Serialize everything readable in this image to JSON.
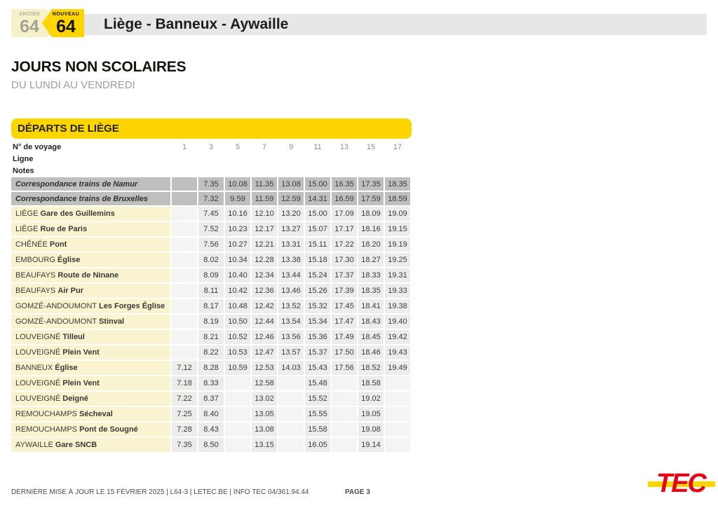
{
  "header": {
    "ancien_label": "ANCIEN",
    "ancien_number": "64",
    "nouveau_label": "NOUVEAU",
    "nouveau_number": "64",
    "title": "Liège - Banneux - Aywaille"
  },
  "section": {
    "title": "JOURS NON SCOLAIRES",
    "subtitle": "DU LUNDI AU VENDREDI"
  },
  "timetable": {
    "banner": "DÉPARTS DE LIÈGE",
    "header_rows": {
      "voyage_label": "N° de voyage",
      "voyage_numbers": [
        "1",
        "3",
        "5",
        "7",
        "9",
        "11",
        "13",
        "15",
        "17"
      ],
      "ligne_label": "Ligne",
      "notes_label": "Notes"
    },
    "connection_rows": [
      {
        "label": "Correspondance trains de Namur",
        "times": [
          "",
          "7.35",
          "10.08",
          "11.35",
          "13.08",
          "15.00",
          "16.35",
          "17.35",
          "18.35"
        ]
      },
      {
        "label": "Correspondance trains de Bruxelles",
        "times": [
          "",
          "7.32",
          "9.59",
          "11.59",
          "12.59",
          "14.31",
          "16.59",
          "17.59",
          "18.59"
        ]
      }
    ],
    "stop_rows": [
      {
        "city": "LIÈGE",
        "stop": "Gare des Guillemins",
        "times": [
          "",
          "7.45",
          "10.16",
          "12.10",
          "13.20",
          "15.00",
          "17.09",
          "18.09",
          "19.09"
        ]
      },
      {
        "city": "LIÈGE",
        "stop": "Rue de Paris",
        "times": [
          "",
          "7.52",
          "10.23",
          "12.17",
          "13.27",
          "15.07",
          "17.17",
          "18.16",
          "19.15"
        ]
      },
      {
        "city": "CHÊNÉE",
        "stop": "Pont",
        "times": [
          "",
          "7.56",
          "10.27",
          "12.21",
          "13.31",
          "15.11",
          "17.22",
          "18.20",
          "19.19"
        ]
      },
      {
        "city": "EMBOURG",
        "stop": "Église",
        "times": [
          "",
          "8.02",
          "10.34",
          "12.28",
          "13.38",
          "15.18",
          "17.30",
          "18.27",
          "19.25"
        ]
      },
      {
        "city": "BEAUFAYS",
        "stop": "Route de Ninane",
        "times": [
          "",
          "8.09",
          "10.40",
          "12.34",
          "13.44",
          "15.24",
          "17.37",
          "18.33",
          "19.31"
        ]
      },
      {
        "city": "BEAUFAYS",
        "stop": "Air Pur",
        "times": [
          "",
          "8.11",
          "10.42",
          "12.36",
          "13.46",
          "15.26",
          "17.39",
          "18.35",
          "19.33"
        ]
      },
      {
        "city": "GOMZÉ-ANDOUMONT",
        "stop": "Les Forges Église",
        "times": [
          "",
          "8.17",
          "10.48",
          "12.42",
          "13.52",
          "15.32",
          "17.45",
          "18.41",
          "19.38"
        ]
      },
      {
        "city": "GOMZÉ-ANDOUMONT",
        "stop": "Stinval",
        "times": [
          "",
          "8.19",
          "10.50",
          "12.44",
          "13.54",
          "15.34",
          "17.47",
          "18.43",
          "19.40"
        ]
      },
      {
        "city": "LOUVEIGNÉ",
        "stop": "Tilleul",
        "times": [
          "",
          "8.21",
          "10.52",
          "12.46",
          "13.56",
          "15.36",
          "17.49",
          "18.45",
          "19.42"
        ]
      },
      {
        "city": "LOUVEIGNÉ",
        "stop": "Plein Vent",
        "times": [
          "",
          "8.22",
          "10.53",
          "12.47",
          "13.57",
          "15.37",
          "17.50",
          "18.46",
          "19.43"
        ]
      },
      {
        "city": "BANNEUX",
        "stop": "Église",
        "times": [
          "7.12",
          "8.28",
          "10.59",
          "12.53",
          "14.03",
          "15.43",
          "17.56",
          "18.52",
          "19.49"
        ]
      },
      {
        "city": "LOUVEIGNÉ",
        "stop": "Plein Vent",
        "times": [
          "7.18",
          "8.33",
          "",
          "12.58",
          "",
          "15.48",
          "",
          "18.58",
          ""
        ]
      },
      {
        "city": "LOUVEIGNÉ",
        "stop": "Deigné",
        "times": [
          "7.22",
          "8.37",
          "",
          "13.02",
          "",
          "15.52",
          "",
          "19.02",
          ""
        ]
      },
      {
        "city": "REMOUCHAMPS",
        "stop": "Sécheval",
        "times": [
          "7.25",
          "8.40",
          "",
          "13.05",
          "",
          "15.55",
          "",
          "19.05",
          ""
        ]
      },
      {
        "city": "REMOUCHAMPS",
        "stop": "Pont de Sougné",
        "times": [
          "7.28",
          "8.43",
          "",
          "13.08",
          "",
          "15.58",
          "",
          "19.08",
          ""
        ]
      },
      {
        "city": "AYWAILLE",
        "stop": "Gare SNCB",
        "times": [
          "7.35",
          "8.50",
          "",
          "13.15",
          "",
          "16.05",
          "",
          "19.14",
          ""
        ]
      }
    ]
  },
  "footer": {
    "info": "DERNIÈRE MISE À JOUR LE 15 FÉVRIER 2025  |  L64-3  |  LETEC.BE  |  INFO TEC 04/361.94.44",
    "page": "PAGE 3",
    "logo_text": "TEC"
  },
  "colors": {
    "brand_yellow": "#ffd500",
    "old_badge_cream": "#f7f1c7",
    "header_bar_grey": "#e7e7e6",
    "connection_row_grey": "#bfbfbe",
    "stop_label_yellow": "#faf3cf",
    "time_cell_grey": "#ececeb",
    "tec_red": "#e30617"
  }
}
